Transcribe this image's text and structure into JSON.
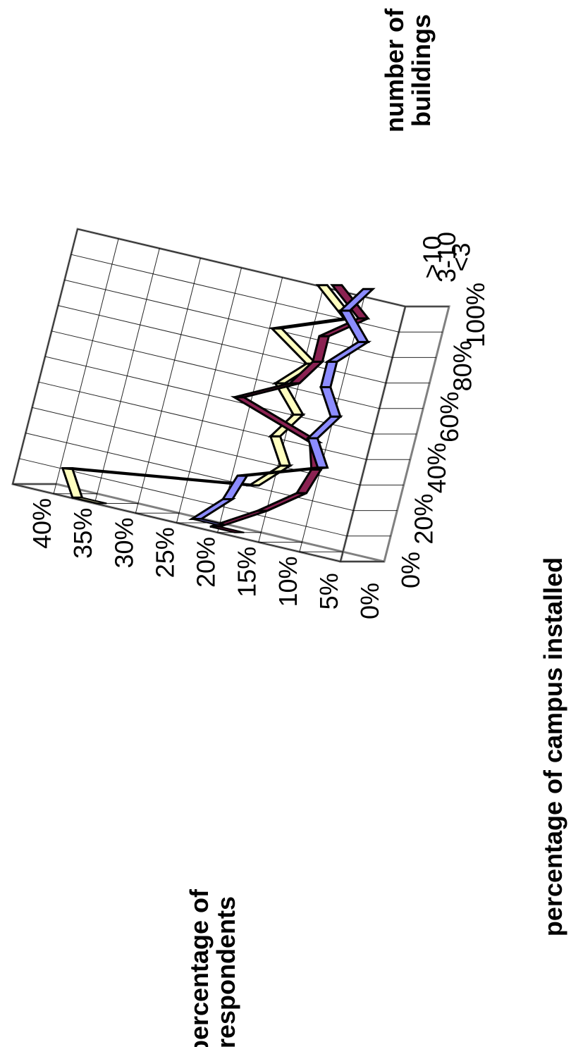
{
  "chart_data": {
    "type": "line",
    "subtype": "3d-ribbon",
    "title": "",
    "xlabel": "percentage of campus installed",
    "ylabel": "percentage of respondents",
    "zlabel": "number of buildings",
    "x": [
      0,
      10,
      20,
      30,
      40,
      50,
      60,
      70,
      80,
      90,
      100
    ],
    "x_ticks": [
      "0%",
      "20%",
      "40%",
      "60%",
      "80%",
      "100%"
    ],
    "y_ticks": [
      "0%",
      "5%",
      "10%",
      "15%",
      "20%",
      "25%",
      "30%",
      "35%",
      "40%"
    ],
    "ylim": [
      0,
      40
    ],
    "series": [
      {
        "name": "<3",
        "values": [
          22,
          19,
          18,
          9,
          11,
          9,
          11,
          11,
          8,
          11,
          9
        ],
        "color": "#8c8cff"
      },
      {
        "name": "3-10",
        "values": [
          18,
          13,
          9,
          8,
          9,
          19,
          13,
          11,
          11,
          7,
          11
        ],
        "color": "#8b2252"
      },
      {
        "name": ">10",
        "values": [
          33,
          35,
          13,
          10,
          12,
          10,
          13,
          10,
          15,
          7,
          11
        ],
        "color": "#ffffc0"
      }
    ],
    "grid": true,
    "legend": "none",
    "orientation": "rotated 90 degrees clockwise"
  }
}
